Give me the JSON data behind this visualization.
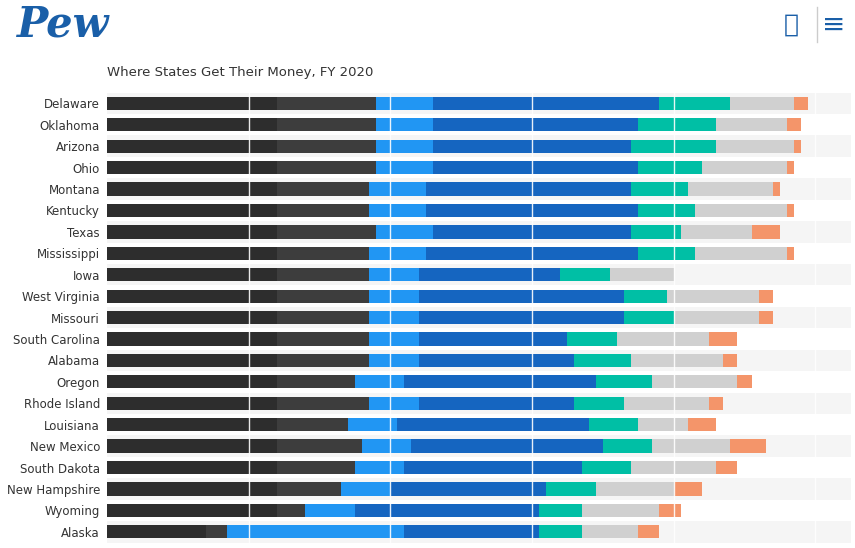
{
  "title": "Where States Get Their Money, FY 2020",
  "states": [
    "Delaware",
    "Oklahoma",
    "Arizona",
    "Ohio",
    "Montana",
    "Kentucky",
    "Texas",
    "Mississippi",
    "Iowa",
    "West Virginia",
    "Missouri",
    "South Carolina",
    "Alabama",
    "Oregon",
    "Rhode Island",
    "Louisiana",
    "New Mexico",
    "South Dakota",
    "New Hampshire",
    "Wyoming",
    "Alaska"
  ],
  "segments": {
    "Delaware": [
      24,
      14,
      8,
      30,
      2,
      10,
      9,
      2
    ],
    "Oklahoma": [
      24,
      14,
      8,
      29,
      0,
      11,
      10,
      2
    ],
    "Arizona": [
      24,
      14,
      8,
      28,
      0,
      12,
      11,
      1
    ],
    "Ohio": [
      24,
      14,
      8,
      29,
      0,
      9,
      12,
      1
    ],
    "Montana": [
      24,
      13,
      8,
      29,
      0,
      8,
      12,
      1
    ],
    "Kentucky": [
      24,
      13,
      8,
      30,
      0,
      8,
      13,
      1
    ],
    "Texas": [
      24,
      14,
      8,
      28,
      0,
      7,
      10,
      4
    ],
    "Mississippi": [
      24,
      13,
      8,
      30,
      0,
      8,
      13,
      1
    ],
    "Iowa": [
      24,
      13,
      7,
      14,
      6,
      7,
      9,
      0
    ],
    "West Virginia": [
      24,
      13,
      7,
      29,
      0,
      6,
      13,
      2
    ],
    "Missouri": [
      24,
      13,
      7,
      29,
      0,
      7,
      12,
      2
    ],
    "South Carolina": [
      24,
      13,
      7,
      21,
      0,
      7,
      13,
      4
    ],
    "Alabama": [
      24,
      13,
      7,
      22,
      0,
      8,
      13,
      2
    ],
    "Oregon": [
      24,
      11,
      7,
      22,
      5,
      8,
      12,
      2
    ],
    "Rhode Island": [
      24,
      13,
      7,
      22,
      0,
      7,
      12,
      2
    ],
    "Louisiana": [
      24,
      10,
      7,
      27,
      0,
      7,
      7,
      4
    ],
    "New Mexico": [
      24,
      12,
      7,
      22,
      5,
      7,
      11,
      5
    ],
    "South Dakota": [
      24,
      11,
      7,
      25,
      0,
      7,
      12,
      3
    ],
    "New Hampshire": [
      24,
      9,
      7,
      22,
      0,
      7,
      11,
      4
    ],
    "Wyoming": [
      24,
      4,
      7,
      26,
      0,
      6,
      11,
      3
    ],
    "Alaska": [
      14,
      3,
      25,
      19,
      0,
      6,
      8,
      3
    ]
  },
  "colors": [
    "#2d2d2d",
    "#3d3d3d",
    "#2196F3",
    "#1565C0",
    "#1565C0",
    "#00BFA5",
    "#d0d0d0",
    "#F4956A"
  ],
  "bg_even": "#f5f5f5",
  "bg_odd": "#ffffff",
  "header_bg": "#e8e8e8",
  "pew_blue": "#1a5fa8",
  "title_fontsize": 9.5,
  "label_fontsize": 8.5,
  "bar_height": 0.62
}
